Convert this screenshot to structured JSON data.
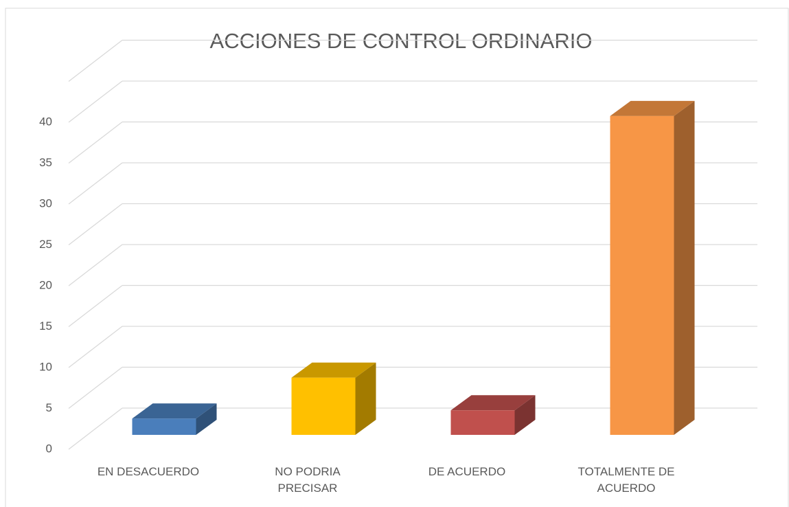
{
  "chart_data": {
    "type": "bar3d",
    "title": "ACCIONES DE CONTROL ORDINARIO",
    "categories": [
      "EN DESACUERDO",
      "NO PODRIA PRECISAR",
      "DE ACUERDO",
      "TOTALMENTE DE ACUERDO"
    ],
    "values": [
      2,
      7,
      3,
      39
    ],
    "colors": [
      "#4a7ebb",
      "#ffc000",
      "#c0504d",
      "#f79646"
    ],
    "ylim": [
      0,
      45
    ],
    "yticks": [
      0,
      5,
      10,
      15,
      20,
      25,
      30,
      35,
      40
    ],
    "grid": true
  }
}
